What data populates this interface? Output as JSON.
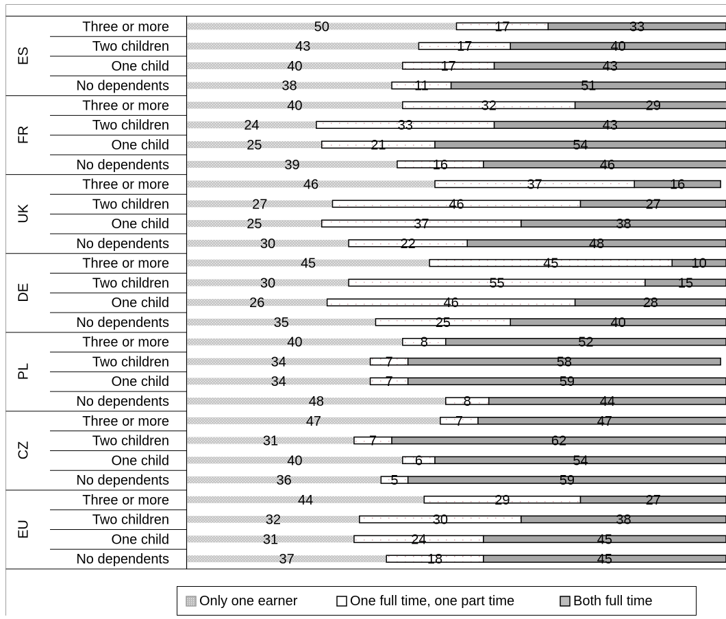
{
  "chart_data": {
    "type": "bar",
    "orientation": "horizontal",
    "stacked": true,
    "normalized_percent": true,
    "title": "",
    "xlabel": "",
    "ylabel": "",
    "xlim": [
      0,
      100
    ],
    "grid": false,
    "legend_position": "bottom",
    "groups": [
      {
        "name": "ES",
        "categories": [
          "Three or more",
          "Two children",
          "One child",
          "No dependents"
        ]
      },
      {
        "name": "FR",
        "categories": [
          "Three or more",
          "Two children",
          "One child",
          "No dependents"
        ]
      },
      {
        "name": "UK",
        "categories": [
          "Three or more",
          "Two children",
          "One child",
          "No dependents"
        ]
      },
      {
        "name": "DE",
        "categories": [
          "Three or more",
          "Two children",
          "One child",
          "No dependents"
        ]
      },
      {
        "name": "PL",
        "categories": [
          "Three or more",
          "Two children",
          "One child",
          "No dependents"
        ]
      },
      {
        "name": "CZ",
        "categories": [
          "Three or more",
          "Two children",
          "One child",
          "No dependents"
        ]
      },
      {
        "name": "EU",
        "categories": [
          "Three or more",
          "Two children",
          "One child",
          "No dependents"
        ]
      }
    ],
    "series": [
      {
        "name": "Only one earner",
        "color": "#c8c8c8",
        "values": [
          50,
          43,
          40,
          38,
          40,
          24,
          25,
          39,
          46,
          27,
          25,
          30,
          45,
          30,
          26,
          35,
          40,
          34,
          34,
          48,
          47,
          31,
          40,
          36,
          44,
          32,
          31,
          37
        ]
      },
      {
        "name": "One full time, one part time",
        "color": "#ffffff",
        "values": [
          17,
          17,
          17,
          11,
          32,
          33,
          21,
          16,
          37,
          46,
          37,
          22,
          45,
          55,
          46,
          25,
          8,
          7,
          7,
          8,
          7,
          7,
          6,
          5,
          29,
          30,
          24,
          18
        ]
      },
      {
        "name": "Both full time",
        "color": "#a6a6a6",
        "values": [
          33,
          40,
          43,
          51,
          29,
          43,
          54,
          46,
          16,
          27,
          38,
          48,
          10,
          15,
          28,
          40,
          52,
          58,
          59,
          44,
          47,
          62,
          54,
          59,
          27,
          38,
          45,
          45
        ]
      }
    ]
  }
}
